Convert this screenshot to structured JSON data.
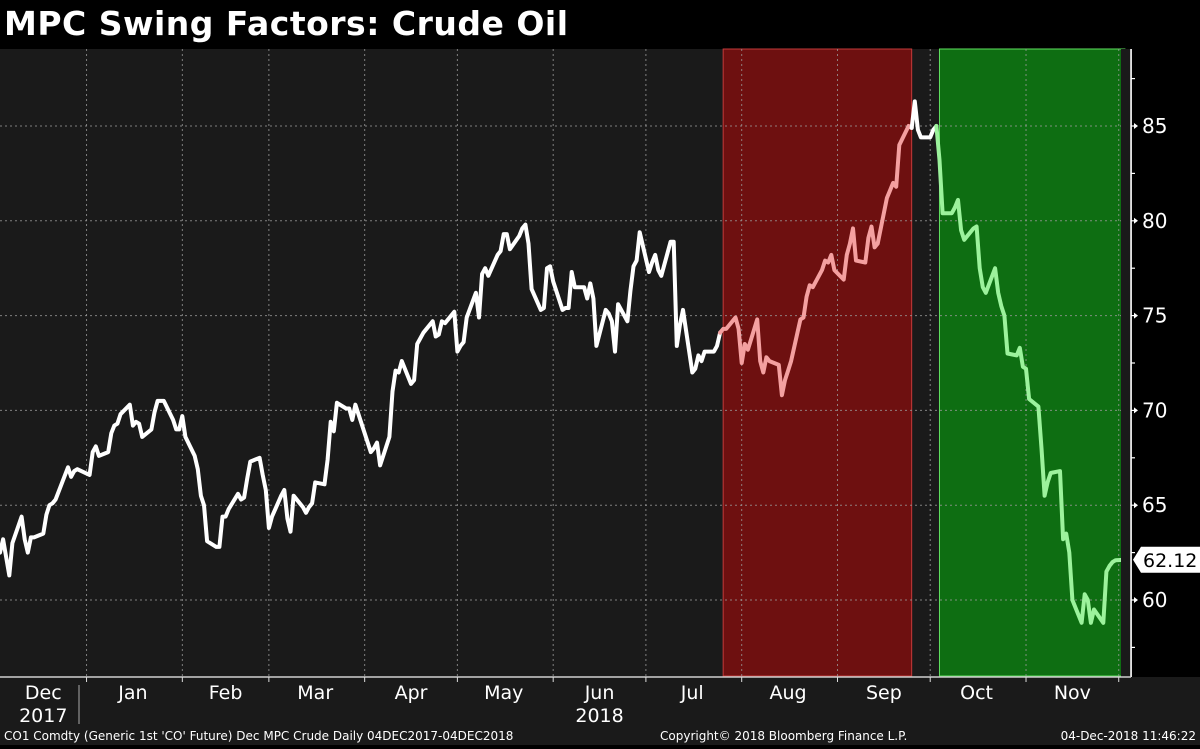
{
  "title": "MPC Swing Factors: Crude Oil",
  "footer": {
    "left": "CO1 Comdty (Generic 1st 'CO' Future) Dec MPC Crude  Daily 04DEC2017-04DEC2018",
    "center": "Copyright© 2018 Bloomberg Finance L.P.",
    "right": "04-Dec-2018 11:46:22"
  },
  "last_price_label": "62.12",
  "colors": {
    "background": "#1a1a1a",
    "outer_background": "#000000",
    "line_normal": "#ffffff",
    "line_red_period": "#f4a0a0",
    "line_green_period": "#9cf29c",
    "red_band": "#6e1010",
    "red_band_border": "#c23a3a",
    "green_band": "#0e6e12",
    "green_band_border": "#5fe05f",
    "grid": "#9a9a9a"
  },
  "chart_data": {
    "type": "line",
    "title": "MPC Swing Factors: Crude Oil",
    "xlabel": "",
    "ylabel": "",
    "ylim": [
      56.5,
      89
    ],
    "y_ticks": [
      60,
      65,
      70,
      75,
      80,
      85
    ],
    "x_tick_labels": [
      {
        "label": "Dec",
        "sub": "2017"
      },
      {
        "label": "Jan",
        "sub": ""
      },
      {
        "label": "Feb",
        "sub": ""
      },
      {
        "label": "Mar",
        "sub": ""
      },
      {
        "label": "Apr",
        "sub": ""
      },
      {
        "label": "May",
        "sub": ""
      },
      {
        "label": "Jun",
        "sub": "2018"
      },
      {
        "label": "Jul",
        "sub": ""
      },
      {
        "label": "Aug",
        "sub": ""
      },
      {
        "label": "Sep",
        "sub": ""
      },
      {
        "label": "Oct",
        "sub": ""
      },
      {
        "label": "Nov",
        "sub": ""
      }
    ],
    "grid": true,
    "legend": null,
    "last_value": 62.12,
    "shaded_periods": [
      {
        "name": "red",
        "start": "2018-07-26",
        "end": "2018-09-25",
        "color": "#6e1010"
      },
      {
        "name": "green",
        "start": "2018-10-04",
        "end": "2018-12-03",
        "color": "#0e6e12"
      }
    ],
    "series": [
      {
        "name": "CO1 Comdty",
        "points": [
          [
            "2017-12-04",
            62.5
          ],
          [
            "2017-12-05",
            63.2
          ],
          [
            "2017-12-07",
            61.3
          ],
          [
            "2017-12-08",
            63.0
          ],
          [
            "2017-12-11",
            64.4
          ],
          [
            "2017-12-12",
            63.2
          ],
          [
            "2017-12-13",
            62.5
          ],
          [
            "2017-12-14",
            63.3
          ],
          [
            "2017-12-15",
            63.3
          ],
          [
            "2017-12-18",
            63.5
          ],
          [
            "2017-12-19",
            64.5
          ],
          [
            "2017-12-20",
            65.0
          ],
          [
            "2017-12-21",
            65.1
          ],
          [
            "2017-12-22",
            65.3
          ],
          [
            "2017-12-26",
            67.0
          ],
          [
            "2017-12-27",
            66.5
          ],
          [
            "2017-12-28",
            66.8
          ],
          [
            "2017-12-29",
            66.9
          ],
          [
            "2018-01-02",
            66.6
          ],
          [
            "2018-01-03",
            67.8
          ],
          [
            "2018-01-04",
            68.1
          ],
          [
            "2018-01-05",
            67.6
          ],
          [
            "2018-01-08",
            67.8
          ],
          [
            "2018-01-09",
            68.8
          ],
          [
            "2018-01-10",
            69.2
          ],
          [
            "2018-01-11",
            69.3
          ],
          [
            "2018-01-12",
            69.8
          ],
          [
            "2018-01-15",
            70.3
          ],
          [
            "2018-01-16",
            69.2
          ],
          [
            "2018-01-17",
            69.4
          ],
          [
            "2018-01-18",
            69.3
          ],
          [
            "2018-01-19",
            68.6
          ],
          [
            "2018-01-22",
            69.0
          ],
          [
            "2018-01-23",
            69.9
          ],
          [
            "2018-01-24",
            70.5
          ],
          [
            "2018-01-25",
            70.5
          ],
          [
            "2018-01-26",
            70.5
          ],
          [
            "2018-01-29",
            69.5
          ],
          [
            "2018-01-30",
            69.0
          ],
          [
            "2018-01-31",
            69.0
          ],
          [
            "2018-02-01",
            69.7
          ],
          [
            "2018-02-02",
            68.6
          ],
          [
            "2018-02-05",
            67.6
          ],
          [
            "2018-02-06",
            66.9
          ],
          [
            "2018-02-07",
            65.5
          ],
          [
            "2018-02-08",
            65.0
          ],
          [
            "2018-02-09",
            63.1
          ],
          [
            "2018-02-12",
            62.8
          ],
          [
            "2018-02-13",
            62.8
          ],
          [
            "2018-02-14",
            64.4
          ],
          [
            "2018-02-15",
            64.4
          ],
          [
            "2018-02-16",
            64.8
          ],
          [
            "2018-02-19",
            65.6
          ],
          [
            "2018-02-20",
            65.3
          ],
          [
            "2018-02-21",
            65.4
          ],
          [
            "2018-02-22",
            66.4
          ],
          [
            "2018-02-23",
            67.3
          ],
          [
            "2018-02-26",
            67.5
          ],
          [
            "2018-02-27",
            66.6
          ],
          [
            "2018-02-28",
            65.8
          ],
          [
            "2018-03-01",
            63.8
          ],
          [
            "2018-03-02",
            64.4
          ],
          [
            "2018-03-05",
            65.5
          ],
          [
            "2018-03-06",
            65.8
          ],
          [
            "2018-03-07",
            64.3
          ],
          [
            "2018-03-08",
            63.6
          ],
          [
            "2018-03-09",
            65.5
          ],
          [
            "2018-03-12",
            64.9
          ],
          [
            "2018-03-13",
            64.6
          ],
          [
            "2018-03-14",
            64.9
          ],
          [
            "2018-03-15",
            65.1
          ],
          [
            "2018-03-16",
            66.2
          ],
          [
            "2018-03-19",
            66.1
          ],
          [
            "2018-03-20",
            67.4
          ],
          [
            "2018-03-21",
            69.4
          ],
          [
            "2018-03-22",
            68.9
          ],
          [
            "2018-03-23",
            70.4
          ],
          [
            "2018-03-26",
            70.1
          ],
          [
            "2018-03-27",
            70.1
          ],
          [
            "2018-03-28",
            69.5
          ],
          [
            "2018-03-29",
            70.3
          ],
          [
            "2018-04-03",
            67.8
          ],
          [
            "2018-04-04",
            68.0
          ],
          [
            "2018-04-05",
            68.3
          ],
          [
            "2018-04-06",
            67.1
          ],
          [
            "2018-04-09",
            68.6
          ],
          [
            "2018-04-10",
            71.0
          ],
          [
            "2018-04-11",
            72.1
          ],
          [
            "2018-04-12",
            72.0
          ],
          [
            "2018-04-13",
            72.6
          ],
          [
            "2018-04-16",
            71.4
          ],
          [
            "2018-04-17",
            71.6
          ],
          [
            "2018-04-18",
            73.5
          ],
          [
            "2018-04-19",
            73.8
          ],
          [
            "2018-04-20",
            74.1
          ],
          [
            "2018-04-23",
            74.7
          ],
          [
            "2018-04-24",
            73.9
          ],
          [
            "2018-04-25",
            74.0
          ],
          [
            "2018-04-26",
            74.7
          ],
          [
            "2018-04-27",
            74.6
          ],
          [
            "2018-04-30",
            75.2
          ],
          [
            "2018-05-01",
            73.1
          ],
          [
            "2018-05-02",
            73.4
          ],
          [
            "2018-05-03",
            73.6
          ],
          [
            "2018-05-04",
            74.9
          ],
          [
            "2018-05-07",
            76.2
          ],
          [
            "2018-05-08",
            74.9
          ],
          [
            "2018-05-09",
            77.2
          ],
          [
            "2018-05-10",
            77.5
          ],
          [
            "2018-05-11",
            77.1
          ],
          [
            "2018-05-14",
            78.2
          ],
          [
            "2018-05-15",
            78.4
          ],
          [
            "2018-05-16",
            79.3
          ],
          [
            "2018-05-17",
            79.3
          ],
          [
            "2018-05-18",
            78.5
          ],
          [
            "2018-05-21",
            79.2
          ],
          [
            "2018-05-22",
            79.6
          ],
          [
            "2018-05-23",
            79.8
          ],
          [
            "2018-05-24",
            78.8
          ],
          [
            "2018-05-25",
            76.4
          ],
          [
            "2018-05-28",
            75.3
          ],
          [
            "2018-05-29",
            75.4
          ],
          [
            "2018-05-30",
            77.5
          ],
          [
            "2018-05-31",
            77.6
          ],
          [
            "2018-06-01",
            76.8
          ],
          [
            "2018-06-04",
            75.3
          ],
          [
            "2018-06-05",
            75.4
          ],
          [
            "2018-06-06",
            75.4
          ],
          [
            "2018-06-07",
            77.3
          ],
          [
            "2018-06-08",
            76.5
          ],
          [
            "2018-06-11",
            76.5
          ],
          [
            "2018-06-12",
            75.9
          ],
          [
            "2018-06-13",
            76.7
          ],
          [
            "2018-06-14",
            75.9
          ],
          [
            "2018-06-15",
            73.4
          ],
          [
            "2018-06-18",
            75.3
          ],
          [
            "2018-06-19",
            75.1
          ],
          [
            "2018-06-20",
            74.7
          ],
          [
            "2018-06-21",
            73.1
          ],
          [
            "2018-06-22",
            75.6
          ],
          [
            "2018-06-25",
            74.7
          ],
          [
            "2018-06-26",
            76.3
          ],
          [
            "2018-06-27",
            77.6
          ],
          [
            "2018-06-28",
            77.9
          ],
          [
            "2018-06-29",
            79.4
          ],
          [
            "2018-07-02",
            77.3
          ],
          [
            "2018-07-03",
            77.8
          ],
          [
            "2018-07-04",
            78.2
          ],
          [
            "2018-07-05",
            77.4
          ],
          [
            "2018-07-06",
            77.1
          ],
          [
            "2018-07-09",
            78.9
          ],
          [
            "2018-07-10",
            78.9
          ],
          [
            "2018-07-11",
            73.4
          ],
          [
            "2018-07-12",
            74.5
          ],
          [
            "2018-07-13",
            75.3
          ],
          [
            "2018-07-16",
            72.0
          ],
          [
            "2018-07-17",
            72.2
          ],
          [
            "2018-07-18",
            72.9
          ],
          [
            "2018-07-19",
            72.6
          ],
          [
            "2018-07-20",
            73.1
          ],
          [
            "2018-07-23",
            73.1
          ],
          [
            "2018-07-24",
            73.4
          ],
          [
            "2018-07-25",
            74.1
          ],
          [
            "2018-07-26",
            74.3
          ],
          [
            "2018-07-27",
            74.3
          ],
          [
            "2018-07-30",
            74.9
          ],
          [
            "2018-07-31",
            74.3
          ],
          [
            "2018-08-01",
            72.5
          ],
          [
            "2018-08-02",
            73.5
          ],
          [
            "2018-08-03",
            73.2
          ],
          [
            "2018-08-06",
            74.8
          ],
          [
            "2018-08-07",
            72.6
          ],
          [
            "2018-08-08",
            72.0
          ],
          [
            "2018-08-09",
            72.8
          ],
          [
            "2018-08-10",
            72.6
          ],
          [
            "2018-08-13",
            72.4
          ],
          [
            "2018-08-14",
            70.8
          ],
          [
            "2018-08-15",
            71.6
          ],
          [
            "2018-08-16",
            72.1
          ],
          [
            "2018-08-17",
            72.6
          ],
          [
            "2018-08-20",
            74.8
          ],
          [
            "2018-08-21",
            74.9
          ],
          [
            "2018-08-22",
            76.0
          ],
          [
            "2018-08-23",
            76.6
          ],
          [
            "2018-08-24",
            76.5
          ],
          [
            "2018-08-27",
            77.4
          ],
          [
            "2018-08-28",
            77.9
          ],
          [
            "2018-08-29",
            77.8
          ],
          [
            "2018-08-30",
            78.2
          ],
          [
            "2018-08-31",
            77.4
          ],
          [
            "2018-09-03",
            76.9
          ],
          [
            "2018-09-04",
            78.2
          ],
          [
            "2018-09-05",
            78.8
          ],
          [
            "2018-09-06",
            79.6
          ],
          [
            "2018-09-07",
            77.9
          ],
          [
            "2018-09-10",
            77.8
          ],
          [
            "2018-09-11",
            79.1
          ],
          [
            "2018-09-12",
            79.7
          ],
          [
            "2018-09-13",
            78.6
          ],
          [
            "2018-09-14",
            78.8
          ],
          [
            "2018-09-17",
            81.2
          ],
          [
            "2018-09-18",
            81.6
          ],
          [
            "2018-09-19",
            82.0
          ],
          [
            "2018-09-20",
            81.8
          ],
          [
            "2018-09-21",
            84.0
          ],
          [
            "2018-09-24",
            85.0
          ],
          [
            "2018-09-25",
            84.9
          ],
          [
            "2018-09-26",
            86.3
          ],
          [
            "2018-09-27",
            84.8
          ],
          [
            "2018-09-28",
            84.4
          ],
          [
            "2018-10-01",
            84.4
          ],
          [
            "2018-10-02",
            84.8
          ],
          [
            "2018-10-03",
            85.0
          ],
          [
            "2018-10-04",
            83.2
          ],
          [
            "2018-10-05",
            80.4
          ],
          [
            "2018-10-08",
            80.4
          ],
          [
            "2018-10-09",
            80.7
          ],
          [
            "2018-10-10",
            81.1
          ],
          [
            "2018-10-11",
            79.5
          ],
          [
            "2018-10-12",
            79.0
          ],
          [
            "2018-10-15",
            79.6
          ],
          [
            "2018-10-16",
            79.7
          ],
          [
            "2018-10-17",
            77.5
          ],
          [
            "2018-10-18",
            76.5
          ],
          [
            "2018-10-19",
            76.2
          ],
          [
            "2018-10-22",
            77.5
          ],
          [
            "2018-10-23",
            76.2
          ],
          [
            "2018-10-24",
            75.5
          ],
          [
            "2018-10-25",
            75.0
          ],
          [
            "2018-10-26",
            73.0
          ],
          [
            "2018-10-29",
            72.9
          ],
          [
            "2018-10-30",
            73.3
          ],
          [
            "2018-10-31",
            72.3
          ],
          [
            "2018-11-01",
            72.2
          ],
          [
            "2018-11-02",
            70.6
          ],
          [
            "2018-11-05",
            70.2
          ],
          [
            "2018-11-06",
            68.0
          ],
          [
            "2018-11-07",
            65.5
          ],
          [
            "2018-11-08",
            66.2
          ],
          [
            "2018-11-09",
            66.7
          ],
          [
            "2018-11-12",
            66.8
          ],
          [
            "2018-11-13",
            63.2
          ],
          [
            "2018-11-14",
            63.5
          ],
          [
            "2018-11-15",
            62.5
          ],
          [
            "2018-11-16",
            60.0
          ],
          [
            "2018-11-19",
            58.8
          ],
          [
            "2018-11-20",
            60.3
          ],
          [
            "2018-11-21",
            60.0
          ],
          [
            "2018-11-22",
            58.8
          ],
          [
            "2018-11-23",
            59.5
          ],
          [
            "2018-11-26",
            58.8
          ],
          [
            "2018-11-27",
            61.5
          ],
          [
            "2018-11-28",
            61.8
          ],
          [
            "2018-11-29",
            62.0
          ],
          [
            "2018-11-30",
            62.1
          ],
          [
            "2018-12-03",
            62.12
          ]
        ]
      }
    ]
  }
}
